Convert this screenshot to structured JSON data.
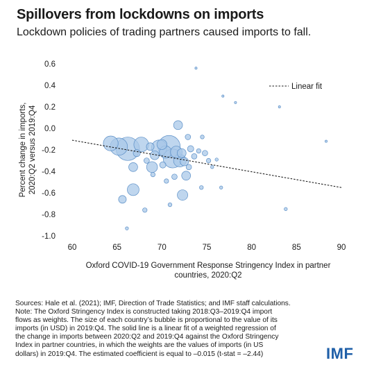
{
  "header": {
    "title": "Spillovers from lockdowns on imports",
    "subtitle": "Lockdown policies of trading partners caused imports to fall."
  },
  "chart_data": {
    "type": "scatter",
    "ylabel_lines": [
      "Percent change in imports,",
      "2020:Q2 versus 2019:Q4"
    ],
    "xlabel_lines": [
      "Oxford COVID-19 Government Response Stringency Index in partner",
      "countries, 2020:Q2"
    ],
    "xlim": [
      60,
      90
    ],
    "ylim": [
      -1.0,
      0.6
    ],
    "x_ticks": [
      "60",
      "65",
      "70",
      "75",
      "80",
      "85",
      "90"
    ],
    "y_ticks": [
      "0.6",
      "0.4",
      "0.2",
      "0.0",
      "-0.2",
      "-0.4",
      "-0.6",
      "-0.8",
      "-1.0"
    ],
    "legend": {
      "label": "Linear fit",
      "placement": "top-right"
    },
    "fit_line": {
      "x": [
        60,
        90
      ],
      "y": [
        -0.11,
        -0.55
      ]
    },
    "bubble_color": "#aac8e8",
    "bubble_stroke": "#5b8fc7",
    "series": [
      {
        "points": [
          {
            "x": 64.3,
            "y": -0.14,
            "size": 2.2
          },
          {
            "x": 66.2,
            "y": -0.19,
            "size": 5.5
          },
          {
            "x": 65.2,
            "y": -0.17,
            "size": 3.0
          },
          {
            "x": 67.7,
            "y": -0.15,
            "size": 2.2
          },
          {
            "x": 66.8,
            "y": -0.36,
            "size": 0.8
          },
          {
            "x": 67.2,
            "y": -0.23,
            "size": 0.5
          },
          {
            "x": 66.8,
            "y": -0.57,
            "size": 1.4
          },
          {
            "x": 65.6,
            "y": -0.66,
            "size": 0.6
          },
          {
            "x": 68.1,
            "y": -0.76,
            "size": 0.2
          },
          {
            "x": 66.1,
            "y": -0.93,
            "size": 0.1
          },
          {
            "x": 68.7,
            "y": -0.17,
            "size": 0.6
          },
          {
            "x": 68.9,
            "y": -0.36,
            "size": 1.2
          },
          {
            "x": 69.2,
            "y": -0.25,
            "size": 0.8
          },
          {
            "x": 69.7,
            "y": -0.18,
            "size": 2.4
          },
          {
            "x": 70.0,
            "y": -0.15,
            "size": 1.0
          },
          {
            "x": 70.4,
            "y": -0.22,
            "size": 1.5
          },
          {
            "x": 70.8,
            "y": -0.17,
            "size": 5.0
          },
          {
            "x": 71.2,
            "y": -0.28,
            "size": 3.6
          },
          {
            "x": 71.6,
            "y": -0.22,
            "size": 1.4
          },
          {
            "x": 72.0,
            "y": -0.3,
            "size": 1.6
          },
          {
            "x": 72.2,
            "y": -0.23,
            "size": 0.8
          },
          {
            "x": 71.8,
            "y": 0.03,
            "size": 0.8
          },
          {
            "x": 72.7,
            "y": -0.44,
            "size": 0.8
          },
          {
            "x": 72.3,
            "y": -0.62,
            "size": 1.1
          },
          {
            "x": 72.5,
            "y": -0.31,
            "size": 0.7
          },
          {
            "x": 73.2,
            "y": -0.19,
            "size": 0.4
          },
          {
            "x": 73.6,
            "y": -0.26,
            "size": 0.3
          },
          {
            "x": 74.1,
            "y": -0.21,
            "size": 0.2
          },
          {
            "x": 74.8,
            "y": -0.23,
            "size": 0.3
          },
          {
            "x": 75.2,
            "y": -0.3,
            "size": 0.2
          },
          {
            "x": 75.6,
            "y": -0.36,
            "size": 0.1
          },
          {
            "x": 76.1,
            "y": -0.29,
            "size": 0.1
          },
          {
            "x": 76.6,
            "y": -0.55,
            "size": 0.1
          },
          {
            "x": 73.8,
            "y": 0.56,
            "size": 0.05
          },
          {
            "x": 76.8,
            "y": 0.3,
            "size": 0.05
          },
          {
            "x": 78.2,
            "y": 0.24,
            "size": 0.05
          },
          {
            "x": 83.1,
            "y": 0.2,
            "size": 0.05
          },
          {
            "x": 88.3,
            "y": -0.12,
            "size": 0.05
          },
          {
            "x": 83.8,
            "y": -0.75,
            "size": 0.1
          },
          {
            "x": 70.5,
            "y": -0.49,
            "size": 0.2
          },
          {
            "x": 69.0,
            "y": -0.43,
            "size": 0.2
          },
          {
            "x": 70.9,
            "y": -0.71,
            "size": 0.15
          },
          {
            "x": 74.4,
            "y": -0.55,
            "size": 0.15
          },
          {
            "x": 71.4,
            "y": -0.45,
            "size": 0.3
          },
          {
            "x": 70.1,
            "y": -0.34,
            "size": 0.4
          },
          {
            "x": 73.0,
            "y": -0.36,
            "size": 0.3
          },
          {
            "x": 68.3,
            "y": -0.3,
            "size": 0.3
          },
          {
            "x": 72.9,
            "y": -0.08,
            "size": 0.3
          },
          {
            "x": 74.5,
            "y": -0.08,
            "size": 0.15
          }
        ]
      }
    ]
  },
  "notes": {
    "lines": [
      "Sources: Hale et al. (2021); IMF, Direction of Trade Statistics; and IMF staff calculations.",
      "Note: The Oxford Stringency Index is constructed taking 2018:Q3–2019:Q4 import",
      "flows as weights. The size of each country’s bubble is proportional to the value of its",
      "imports (in USD) in 2019:Q4. The solid line is a linear fit of a weighted regression of",
      "the change in imports between 2020:Q2 and 2019:Q4 against the Oxford Stringency",
      "Index in partner countries, in which the weights are the values of imports (in US",
      "dollars) in 2019:Q4. The estimated coefficient is equal to –0.015 (t-stat = –2.44)"
    ]
  },
  "logo": {
    "text": "IMF"
  }
}
